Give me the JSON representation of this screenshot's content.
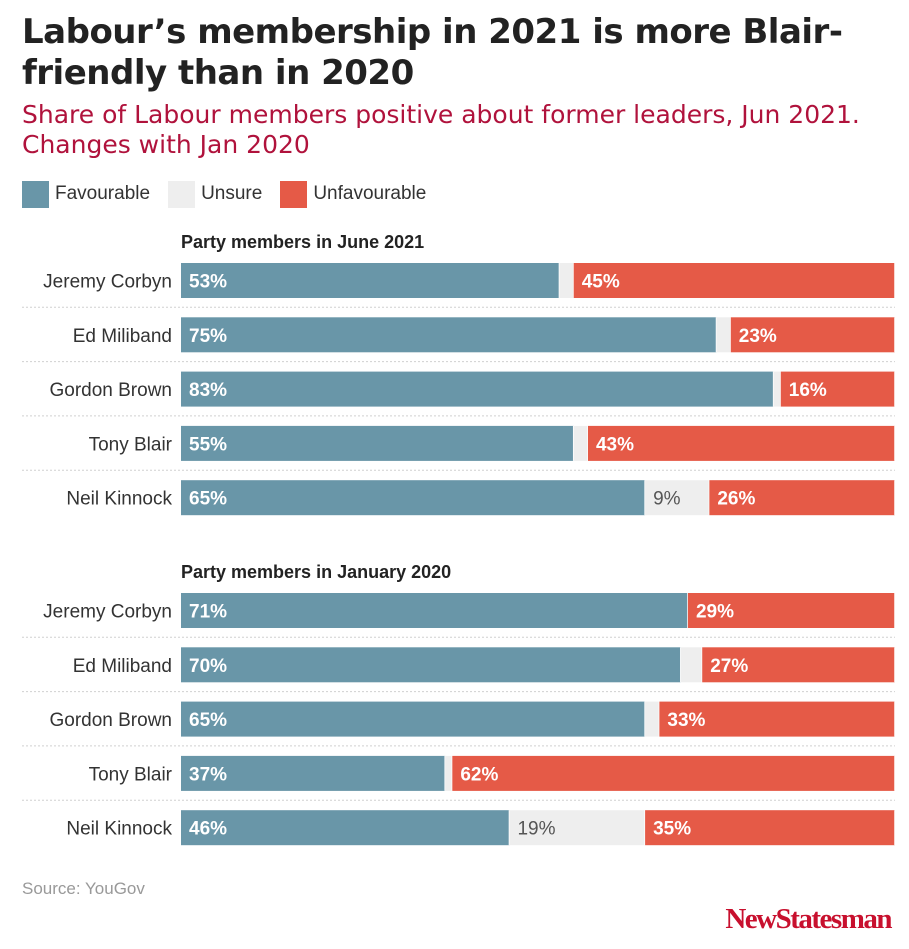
{
  "title": "Labour’s membership in 2021 is more Blair-friendly than in 2020",
  "subtitle": "Share of Labour members positive about former leaders, Jun 2021. Changes with Jan 2020",
  "legend": {
    "items": [
      {
        "label": "Favourable",
        "color": "#6996a8"
      },
      {
        "label": "Unsure",
        "color": "#eeeeee"
      },
      {
        "label": "Unfavourable",
        "color": "#e55a47"
      }
    ]
  },
  "source": "Source: YouGov",
  "logo": "NewStatesman",
  "chart_data": {
    "type": "bar",
    "orientation": "horizontal",
    "stacked": true,
    "xlim": [
      0,
      100
    ],
    "groups": [
      {
        "title": "Party members in June 2021",
        "categories": [
          "Jeremy Corbyn",
          "Ed Miliband",
          "Gordon Brown",
          "Tony Blair",
          "Neil Kinnock"
        ],
        "series": [
          {
            "name": "Favourable",
            "values": [
              53,
              75,
              83,
              55,
              65
            ]
          },
          {
            "name": "Unsure",
            "values": [
              2,
              2,
              1,
              2,
              9
            ]
          },
          {
            "name": "Unfavourable",
            "values": [
              45,
              23,
              16,
              43,
              26
            ]
          }
        ],
        "labels": {
          "Favourable": [
            "53%",
            "75%",
            "83%",
            "55%",
            "65%"
          ],
          "Unsure": [
            "",
            "",
            "",
            "",
            "9%"
          ],
          "Unfavourable": [
            "45%",
            "23%",
            "16%",
            "43%",
            "26%"
          ]
        }
      },
      {
        "title": "Party members in January 2020",
        "categories": [
          "Jeremy Corbyn",
          "Ed Miliband",
          "Gordon Brown",
          "Tony Blair",
          "Neil Kinnock"
        ],
        "series": [
          {
            "name": "Favourable",
            "values": [
              71,
              70,
              65,
              37,
              46
            ]
          },
          {
            "name": "Unsure",
            "values": [
              0,
              3,
              2,
              1,
              19
            ]
          },
          {
            "name": "Unfavourable",
            "values": [
              29,
              27,
              33,
              62,
              35
            ]
          }
        ],
        "labels": {
          "Favourable": [
            "71%",
            "70%",
            "65%",
            "37%",
            "46%"
          ],
          "Unsure": [
            "",
            "",
            "",
            "",
            "19%"
          ],
          "Unfavourable": [
            "29%",
            "27%",
            "33%",
            "62%",
            "35%"
          ]
        }
      }
    ]
  }
}
